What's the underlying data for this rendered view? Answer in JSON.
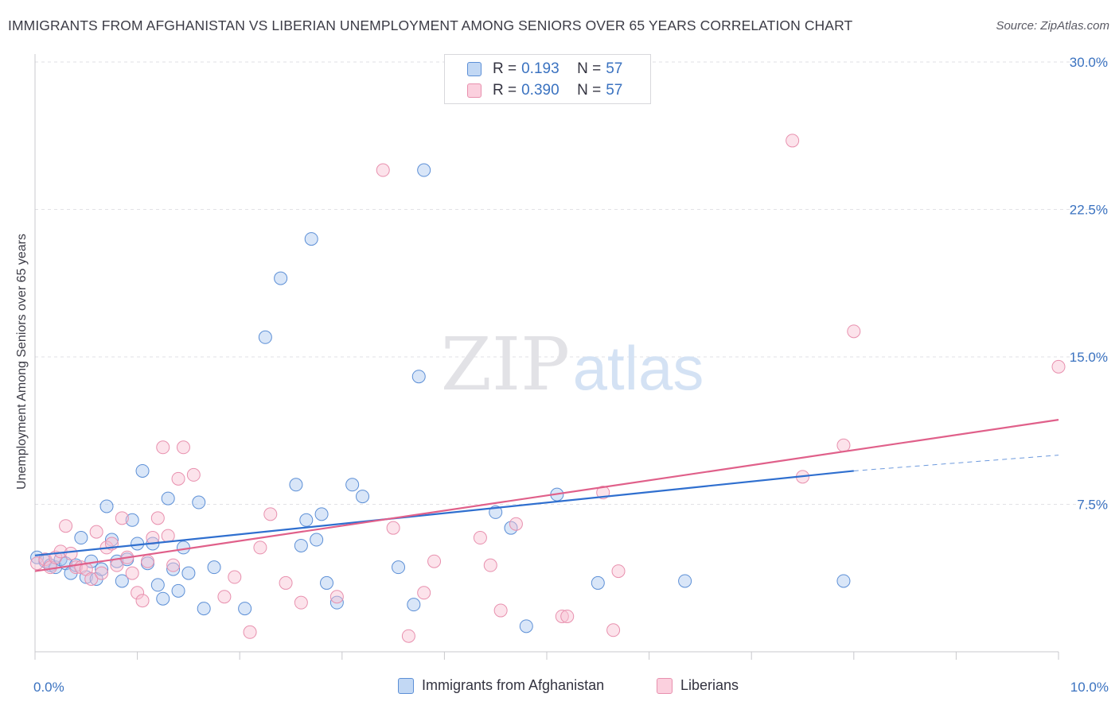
{
  "title": "IMMIGRANTS FROM AFGHANISTAN VS LIBERIAN UNEMPLOYMENT AMONG SENIORS OVER 65 YEARS CORRELATION CHART",
  "source": "Source: ZipAtlas.com",
  "watermark": {
    "zip": "ZIP",
    "atlas": "atlas"
  },
  "legend": {
    "r_label": "R =",
    "n_label": "N =",
    "rows": [
      {
        "name": "Immigrants from Afghanistan",
        "r": "0.193",
        "n": "57",
        "fill": "#aac8f0",
        "stroke": "#5c8fd6"
      },
      {
        "name": "Liberians",
        "r": "0.390",
        "n": "57",
        "fill": "#f8c0d2",
        "stroke": "#e890ae"
      }
    ]
  },
  "chart_data": {
    "type": "scatter",
    "title": "IMMIGRANTS FROM AFGHANISTAN VS LIBERIAN UNEMPLOYMENT AMONG SENIORS OVER 65 YEARS CORRELATION CHART",
    "xlabel": "",
    "ylabel": "Unemployment Among Seniors over 65 years",
    "xlim": [
      0,
      10
    ],
    "ylim": [
      0,
      30
    ],
    "x_tick_labels": [
      {
        "value": 0,
        "label": "0.0%"
      },
      {
        "value": 10,
        "label": "10.0%"
      }
    ],
    "y_tick_labels": [
      {
        "value": 7.5,
        "label": "7.5%"
      },
      {
        "value": 15,
        "label": "15.0%"
      },
      {
        "value": 22.5,
        "label": "22.5%"
      },
      {
        "value": 30,
        "label": "30.0%"
      }
    ],
    "grid": true,
    "series": [
      {
        "name": "Immigrants from Afghanistan",
        "color": "#5c8fd6",
        "trend": {
          "x": [
            0,
            8
          ],
          "y": [
            4.9,
            9.2
          ],
          "dashed_extension_to": [
            10,
            10.0
          ],
          "color": "#2f6fcf"
        },
        "points": [
          [
            0.02,
            4.8
          ],
          [
            0.1,
            4.6
          ],
          [
            0.15,
            4.4
          ],
          [
            0.2,
            4.3
          ],
          [
            0.25,
            4.7
          ],
          [
            0.3,
            4.5
          ],
          [
            0.35,
            4.0
          ],
          [
            0.4,
            4.4
          ],
          [
            0.45,
            5.8
          ],
          [
            0.5,
            3.8
          ],
          [
            0.55,
            4.6
          ],
          [
            0.6,
            3.7
          ],
          [
            0.65,
            4.2
          ],
          [
            0.7,
            7.4
          ],
          [
            0.75,
            5.7
          ],
          [
            0.8,
            4.6
          ],
          [
            0.85,
            3.6
          ],
          [
            0.9,
            4.7
          ],
          [
            0.95,
            6.7
          ],
          [
            1.0,
            5.5
          ],
          [
            1.05,
            9.2
          ],
          [
            1.1,
            4.5
          ],
          [
            1.15,
            5.5
          ],
          [
            1.2,
            3.4
          ],
          [
            1.25,
            2.7
          ],
          [
            1.3,
            7.8
          ],
          [
            1.35,
            4.2
          ],
          [
            1.4,
            3.1
          ],
          [
            1.45,
            5.3
          ],
          [
            1.5,
            4.0
          ],
          [
            1.6,
            7.6
          ],
          [
            1.65,
            2.2
          ],
          [
            1.75,
            4.3
          ],
          [
            2.05,
            2.2
          ],
          [
            2.25,
            16.0
          ],
          [
            2.4,
            19.0
          ],
          [
            2.55,
            8.5
          ],
          [
            2.6,
            5.4
          ],
          [
            2.65,
            6.7
          ],
          [
            2.7,
            21.0
          ],
          [
            2.75,
            5.7
          ],
          [
            2.8,
            7.0
          ],
          [
            2.85,
            3.5
          ],
          [
            2.95,
            2.5
          ],
          [
            3.1,
            8.5
          ],
          [
            3.2,
            7.9
          ],
          [
            3.55,
            4.3
          ],
          [
            3.7,
            2.4
          ],
          [
            3.75,
            14.0
          ],
          [
            3.8,
            24.5
          ],
          [
            4.5,
            7.1
          ],
          [
            4.65,
            6.3
          ],
          [
            4.8,
            1.3
          ],
          [
            5.1,
            8.0
          ],
          [
            5.5,
            3.5
          ],
          [
            6.35,
            3.6
          ],
          [
            7.9,
            3.6
          ]
        ]
      },
      {
        "name": "Liberians",
        "color": "#e890ae",
        "trend": {
          "x": [
            0,
            10
          ],
          "y": [
            4.1,
            11.8
          ],
          "color": "#e0608a"
        },
        "points": [
          [
            0.02,
            4.5
          ],
          [
            0.1,
            4.7
          ],
          [
            0.15,
            4.3
          ],
          [
            0.2,
            4.8
          ],
          [
            0.25,
            5.1
          ],
          [
            0.3,
            6.4
          ],
          [
            0.35,
            5.0
          ],
          [
            0.4,
            4.3
          ],
          [
            0.45,
            4.3
          ],
          [
            0.5,
            4.2
          ],
          [
            0.55,
            3.7
          ],
          [
            0.6,
            6.1
          ],
          [
            0.65,
            4.0
          ],
          [
            0.7,
            5.3
          ],
          [
            0.75,
            5.5
          ],
          [
            0.8,
            4.4
          ],
          [
            0.85,
            6.8
          ],
          [
            0.9,
            4.8
          ],
          [
            0.95,
            4.0
          ],
          [
            1.0,
            3.0
          ],
          [
            1.05,
            2.6
          ],
          [
            1.1,
            4.6
          ],
          [
            1.15,
            5.8
          ],
          [
            1.2,
            6.8
          ],
          [
            1.25,
            10.4
          ],
          [
            1.3,
            5.9
          ],
          [
            1.35,
            4.4
          ],
          [
            1.4,
            8.8
          ],
          [
            1.45,
            10.4
          ],
          [
            1.55,
            9.0
          ],
          [
            1.85,
            2.8
          ],
          [
            1.95,
            3.8
          ],
          [
            2.1,
            1.0
          ],
          [
            2.2,
            5.3
          ],
          [
            2.3,
            7.0
          ],
          [
            2.45,
            3.5
          ],
          [
            2.6,
            2.5
          ],
          [
            2.95,
            2.8
          ],
          [
            3.4,
            24.5
          ],
          [
            3.5,
            6.3
          ],
          [
            3.65,
            0.8
          ],
          [
            3.8,
            3.0
          ],
          [
            3.9,
            4.6
          ],
          [
            4.35,
            5.8
          ],
          [
            4.45,
            4.4
          ],
          [
            4.55,
            2.1
          ],
          [
            4.7,
            6.5
          ],
          [
            5.15,
            1.8
          ],
          [
            5.2,
            1.8
          ],
          [
            5.55,
            8.1
          ],
          [
            5.65,
            1.1
          ],
          [
            5.7,
            4.1
          ],
          [
            7.4,
            26.0
          ],
          [
            7.5,
            8.9
          ],
          [
            7.9,
            10.5
          ],
          [
            8.0,
            16.3
          ],
          [
            10.0,
            14.5
          ]
        ]
      }
    ]
  }
}
